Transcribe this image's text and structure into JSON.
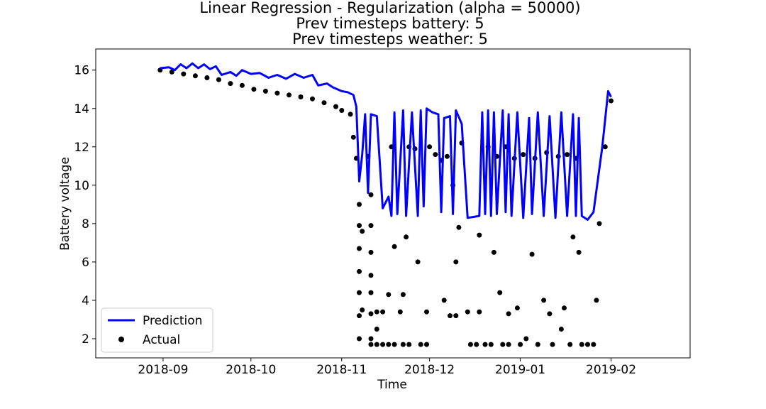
{
  "chart_data": {
    "type": "line",
    "title_lines": [
      "Linear Regression - Regularization (alpha = 50000)",
      "Prev timesteps battery: 5",
      "Prev timesteps weather: 5"
    ],
    "xlabel": "Time",
    "ylabel": "Battery voltage",
    "xlim": [
      "2018-08-09",
      "2019-02-28"
    ],
    "ylim": [
      1.0,
      17.1
    ],
    "x_ticks": [
      {
        "date": "2018-09-01",
        "label": "2018-09"
      },
      {
        "date": "2018-10-01",
        "label": "2018-10"
      },
      {
        "date": "2018-11-01",
        "label": "2018-11"
      },
      {
        "date": "2018-12-01",
        "label": "2018-12"
      },
      {
        "date": "2019-01-01",
        "label": "2019-01"
      },
      {
        "date": "2019-02-01",
        "label": "2019-02"
      }
    ],
    "y_ticks": [
      2,
      4,
      6,
      8,
      10,
      12,
      14,
      16
    ],
    "grid": false,
    "legend": {
      "position": "lower-left",
      "entries": [
        "Prediction",
        "Actual"
      ]
    },
    "colors": {
      "prediction": "#0000ff",
      "actual": "#000000"
    },
    "series": [
      {
        "name": "Prediction",
        "type": "line",
        "points": [
          [
            "2018-08-31",
            16.1
          ],
          [
            "2018-09-03",
            16.15
          ],
          [
            "2018-09-05",
            16.0
          ],
          [
            "2018-09-07",
            16.3
          ],
          [
            "2018-09-09",
            16.1
          ],
          [
            "2018-09-11",
            16.35
          ],
          [
            "2018-09-13",
            16.1
          ],
          [
            "2018-09-15",
            16.3
          ],
          [
            "2018-09-17",
            16.05
          ],
          [
            "2018-09-19",
            16.2
          ],
          [
            "2018-09-21",
            15.75
          ],
          [
            "2018-09-24",
            15.9
          ],
          [
            "2018-09-26",
            15.7
          ],
          [
            "2018-09-28",
            16.0
          ],
          [
            "2018-10-01",
            15.8
          ],
          [
            "2018-10-04",
            15.85
          ],
          [
            "2018-10-07",
            15.6
          ],
          [
            "2018-10-10",
            15.75
          ],
          [
            "2018-10-13",
            15.55
          ],
          [
            "2018-10-16",
            15.8
          ],
          [
            "2018-10-19",
            15.6
          ],
          [
            "2018-10-22",
            15.75
          ],
          [
            "2018-10-24",
            15.2
          ],
          [
            "2018-10-27",
            15.3
          ],
          [
            "2018-10-29",
            15.1
          ],
          [
            "2018-11-01",
            14.9
          ],
          [
            "2018-11-03",
            14.85
          ],
          [
            "2018-11-05",
            14.7
          ],
          [
            "2018-11-06",
            14.1
          ],
          [
            "2018-11-07",
            10.2
          ],
          [
            "2018-11-08",
            11.6
          ],
          [
            "2018-11-09",
            13.7
          ],
          [
            "2018-11-10",
            9.6
          ],
          [
            "2018-11-11",
            13.7
          ],
          [
            "2018-11-13",
            13.6
          ],
          [
            "2018-11-15",
            8.8
          ],
          [
            "2018-11-17",
            9.4
          ],
          [
            "2018-11-18",
            8.4
          ],
          [
            "2018-11-19",
            13.8
          ],
          [
            "2018-11-20",
            8.5
          ],
          [
            "2018-11-22",
            13.9
          ],
          [
            "2018-11-23",
            8.4
          ],
          [
            "2018-11-25",
            13.8
          ],
          [
            "2018-11-27",
            8.4
          ],
          [
            "2018-11-28",
            13.9
          ],
          [
            "2018-11-29",
            8.9
          ],
          [
            "2018-11-30",
            14.0
          ],
          [
            "2018-12-02",
            13.8
          ],
          [
            "2018-12-04",
            13.7
          ],
          [
            "2018-12-05",
            8.6
          ],
          [
            "2018-12-06",
            13.5
          ],
          [
            "2018-12-08",
            13.6
          ],
          [
            "2018-12-09",
            8.5
          ],
          [
            "2018-12-10",
            13.9
          ],
          [
            "2018-12-12",
            13.2
          ],
          [
            "2018-12-14",
            8.3
          ],
          [
            "2018-12-18",
            8.4
          ],
          [
            "2018-12-19",
            13.8
          ],
          [
            "2018-12-20",
            8.5
          ],
          [
            "2018-12-21",
            13.9
          ],
          [
            "2018-12-22",
            8.4
          ],
          [
            "2018-12-23",
            13.8
          ],
          [
            "2018-12-24",
            8.5
          ],
          [
            "2018-12-26",
            13.9
          ],
          [
            "2018-12-27",
            8.6
          ],
          [
            "2018-12-28",
            13.7
          ],
          [
            "2018-12-29",
            8.4
          ],
          [
            "2018-12-31",
            13.8
          ],
          [
            "2019-01-02",
            8.3
          ],
          [
            "2019-01-04",
            13.5
          ],
          [
            "2019-01-05",
            8.5
          ],
          [
            "2019-01-07",
            13.8
          ],
          [
            "2019-01-09",
            8.4
          ],
          [
            "2019-01-11",
            13.6
          ],
          [
            "2019-01-13",
            8.3
          ],
          [
            "2019-01-15",
            13.8
          ],
          [
            "2019-01-17",
            8.4
          ],
          [
            "2019-01-19",
            13.7
          ],
          [
            "2019-01-20",
            8.4
          ],
          [
            "2019-01-21",
            13.5
          ],
          [
            "2019-01-22",
            8.4
          ],
          [
            "2019-01-24",
            8.2
          ],
          [
            "2019-01-26",
            8.6
          ],
          [
            "2019-01-29",
            12.0
          ],
          [
            "2019-01-31",
            14.9
          ],
          [
            "2019-02-01",
            14.6
          ]
        ]
      },
      {
        "name": "Actual",
        "type": "scatter",
        "points": [
          [
            "2018-08-31",
            16.0
          ],
          [
            "2018-09-04",
            15.9
          ],
          [
            "2018-09-08",
            15.8
          ],
          [
            "2018-09-12",
            15.7
          ],
          [
            "2018-09-16",
            15.6
          ],
          [
            "2018-09-20",
            15.5
          ],
          [
            "2018-09-24",
            15.3
          ],
          [
            "2018-09-28",
            15.2
          ],
          [
            "2018-10-02",
            15.0
          ],
          [
            "2018-10-06",
            14.9
          ],
          [
            "2018-10-10",
            14.8
          ],
          [
            "2018-10-14",
            14.7
          ],
          [
            "2018-10-18",
            14.6
          ],
          [
            "2018-10-22",
            14.5
          ],
          [
            "2018-10-26",
            14.3
          ],
          [
            "2018-10-30",
            14.1
          ],
          [
            "2018-11-01",
            13.9
          ],
          [
            "2018-11-04",
            13.7
          ],
          [
            "2018-11-05",
            12.5
          ],
          [
            "2018-11-06",
            11.4
          ],
          [
            "2018-11-07",
            9.0
          ],
          [
            "2018-11-07",
            7.9
          ],
          [
            "2018-11-07",
            6.7
          ],
          [
            "2018-11-07",
            5.5
          ],
          [
            "2018-11-07",
            4.4
          ],
          [
            "2018-11-07",
            3.2
          ],
          [
            "2018-11-07",
            2.0
          ],
          [
            "2018-11-08",
            7.6
          ],
          [
            "2018-11-08",
            3.5
          ],
          [
            "2018-11-10",
            11.5
          ],
          [
            "2018-11-11",
            9.5
          ],
          [
            "2018-11-11",
            7.9
          ],
          [
            "2018-11-11",
            6.5
          ],
          [
            "2018-11-11",
            5.3
          ],
          [
            "2018-11-11",
            4.4
          ],
          [
            "2018-11-11",
            3.3
          ],
          [
            "2018-11-11",
            2.0
          ],
          [
            "2018-11-11",
            1.7
          ],
          [
            "2018-11-13",
            3.4
          ],
          [
            "2018-11-13",
            2.5
          ],
          [
            "2018-11-13",
            1.7
          ],
          [
            "2018-11-15",
            1.7
          ],
          [
            "2018-11-15",
            3.4
          ],
          [
            "2018-11-17",
            4.3
          ],
          [
            "2018-11-17",
            1.7
          ],
          [
            "2018-11-18",
            12.0
          ],
          [
            "2018-11-19",
            6.8
          ],
          [
            "2018-11-19",
            1.7
          ],
          [
            "2018-11-21",
            3.4
          ],
          [
            "2018-11-22",
            4.3
          ],
          [
            "2018-11-22",
            1.7
          ],
          [
            "2018-11-23",
            7.3
          ],
          [
            "2018-11-24",
            12.0
          ],
          [
            "2018-11-24",
            1.7
          ],
          [
            "2018-11-26",
            11.9
          ],
          [
            "2018-11-27",
            6.0
          ],
          [
            "2018-11-28",
            1.7
          ],
          [
            "2018-11-30",
            3.4
          ],
          [
            "2018-11-30",
            1.7
          ],
          [
            "2018-12-01",
            12.0
          ],
          [
            "2018-12-03",
            11.6
          ],
          [
            "2018-12-05",
            11.3
          ],
          [
            "2018-12-06",
            4.0
          ],
          [
            "2018-12-07",
            11.5
          ],
          [
            "2018-12-08",
            3.2
          ],
          [
            "2018-12-09",
            10.0
          ],
          [
            "2018-12-10",
            6.0
          ],
          [
            "2018-12-10",
            3.2
          ],
          [
            "2018-12-11",
            7.8
          ],
          [
            "2018-12-12",
            12.2
          ],
          [
            "2018-12-14",
            3.4
          ],
          [
            "2018-12-15",
            1.7
          ],
          [
            "2018-12-17",
            1.7
          ],
          [
            "2018-12-18",
            7.4
          ],
          [
            "2018-12-18",
            3.4
          ],
          [
            "2018-12-20",
            1.7
          ],
          [
            "2018-12-21",
            12.0
          ],
          [
            "2018-12-22",
            1.7
          ],
          [
            "2018-12-23",
            6.5
          ],
          [
            "2018-12-24",
            11.5
          ],
          [
            "2018-12-25",
            4.4
          ],
          [
            "2018-12-26",
            1.7
          ],
          [
            "2018-12-27",
            12.0
          ],
          [
            "2018-12-28",
            3.3
          ],
          [
            "2018-12-28",
            1.7
          ],
          [
            "2018-12-30",
            11.4
          ],
          [
            "2018-12-31",
            3.6
          ],
          [
            "2019-01-01",
            1.7
          ],
          [
            "2019-01-02",
            11.6
          ],
          [
            "2019-01-03",
            2.0
          ],
          [
            "2019-01-05",
            6.4
          ],
          [
            "2019-01-06",
            11.4
          ],
          [
            "2019-01-07",
            1.7
          ],
          [
            "2019-01-09",
            4.0
          ],
          [
            "2019-01-10",
            11.7
          ],
          [
            "2019-01-11",
            3.3
          ],
          [
            "2019-01-12",
            1.7
          ],
          [
            "2019-01-14",
            11.5
          ],
          [
            "2019-01-15",
            2.5
          ],
          [
            "2019-01-16",
            3.6
          ],
          [
            "2019-01-17",
            11.6
          ],
          [
            "2019-01-18",
            1.7
          ],
          [
            "2019-01-19",
            7.3
          ],
          [
            "2019-01-20",
            11.4
          ],
          [
            "2019-01-21",
            6.5
          ],
          [
            "2019-01-22",
            1.7
          ],
          [
            "2019-01-24",
            1.7
          ],
          [
            "2019-01-26",
            1.7
          ],
          [
            "2019-01-27",
            4.0
          ],
          [
            "2019-01-28",
            8.0
          ],
          [
            "2019-01-30",
            12.0
          ],
          [
            "2019-02-01",
            14.4
          ]
        ]
      }
    ]
  }
}
